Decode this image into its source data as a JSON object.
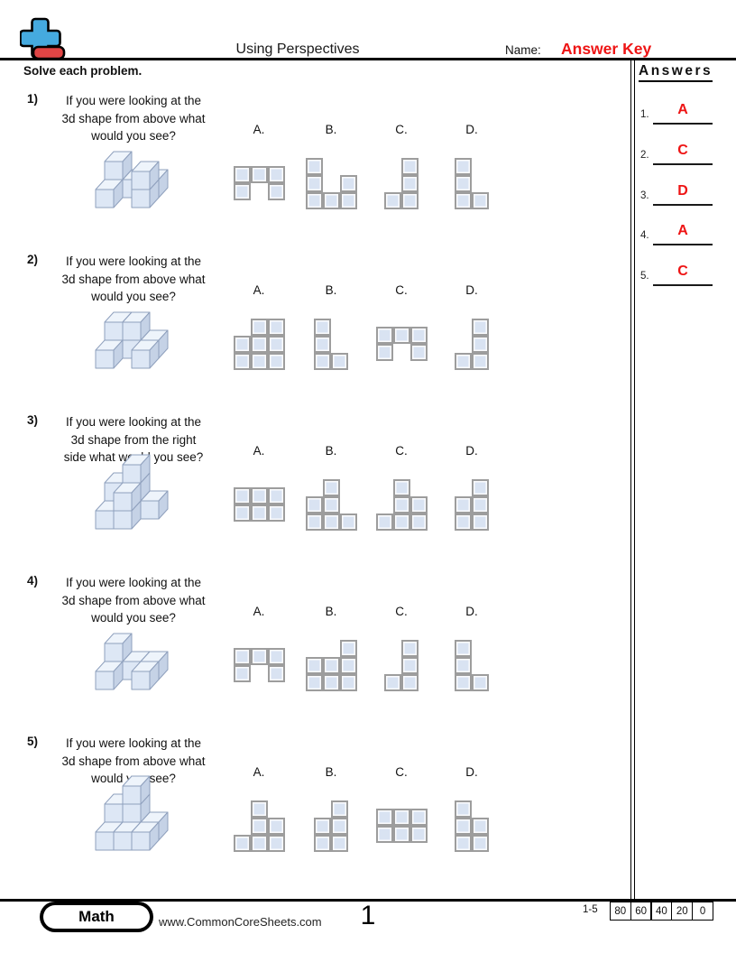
{
  "header": {
    "title": "Using Perspectives",
    "name_label": "Name:",
    "name_value": "Answer Key"
  },
  "instructions": "Solve each problem.",
  "answers_panel": {
    "title": "Answers",
    "items": [
      {
        "num": "1.",
        "value": "A"
      },
      {
        "num": "2.",
        "value": "C"
      },
      {
        "num": "3.",
        "value": "D"
      },
      {
        "num": "4.",
        "value": "A"
      },
      {
        "num": "5.",
        "value": "C"
      }
    ]
  },
  "problems": [
    {
      "number": "1)",
      "question_lines": [
        "If you were looking at the",
        "3d shape from above what",
        "would you see?"
      ],
      "cubes": [
        [
          0,
          0,
          0
        ],
        [
          0,
          1,
          0
        ],
        [
          0,
          1,
          1
        ],
        [
          1,
          1,
          0
        ],
        [
          2,
          1,
          0
        ],
        [
          2,
          0,
          0
        ],
        [
          2,
          0,
          1
        ]
      ],
      "options": [
        {
          "label": "A.",
          "rows": 2,
          "cols": 3,
          "cells": [
            [
              0,
              0
            ],
            [
              0,
              1
            ],
            [
              0,
              2
            ],
            [
              1,
              0
            ],
            [
              1,
              2
            ]
          ]
        },
        {
          "label": "B.",
          "rows": 3,
          "cols": 3,
          "cells": [
            [
              0,
              0
            ],
            [
              1,
              0
            ],
            [
              1,
              2
            ],
            [
              2,
              0
            ],
            [
              2,
              1
            ],
            [
              2,
              2
            ]
          ]
        },
        {
          "label": "C.",
          "rows": 3,
          "cols": 2,
          "cells": [
            [
              0,
              1
            ],
            [
              1,
              1
            ],
            [
              2,
              0
            ],
            [
              2,
              1
            ]
          ]
        },
        {
          "label": "D.",
          "rows": 3,
          "cols": 2,
          "cells": [
            [
              0,
              0
            ],
            [
              1,
              0
            ],
            [
              2,
              0
            ],
            [
              2,
              1
            ]
          ]
        }
      ]
    },
    {
      "number": "2)",
      "question_lines": [
        "If you were looking at the",
        "3d shape from above what",
        "would you see?"
      ],
      "cubes": [
        [
          0,
          0,
          0
        ],
        [
          0,
          1,
          0
        ],
        [
          0,
          1,
          1
        ],
        [
          1,
          1,
          0
        ],
        [
          1,
          1,
          1
        ],
        [
          2,
          1,
          0
        ],
        [
          2,
          0,
          0
        ]
      ],
      "options": [
        {
          "label": "A.",
          "rows": 3,
          "cols": 3,
          "cells": [
            [
              0,
              1
            ],
            [
              0,
              2
            ],
            [
              1,
              0
            ],
            [
              1,
              1
            ],
            [
              1,
              2
            ],
            [
              2,
              0
            ],
            [
              2,
              1
            ],
            [
              2,
              2
            ]
          ]
        },
        {
          "label": "B.",
          "rows": 3,
          "cols": 2,
          "cells": [
            [
              0,
              0
            ],
            [
              1,
              0
            ],
            [
              2,
              0
            ],
            [
              2,
              1
            ]
          ]
        },
        {
          "label": "C.",
          "rows": 2,
          "cols": 3,
          "cells": [
            [
              0,
              0
            ],
            [
              0,
              1
            ],
            [
              0,
              2
            ],
            [
              1,
              0
            ],
            [
              1,
              2
            ]
          ]
        },
        {
          "label": "D.",
          "rows": 3,
          "cols": 2,
          "cells": [
            [
              0,
              1
            ],
            [
              1,
              1
            ],
            [
              2,
              0
            ],
            [
              2,
              1
            ]
          ]
        }
      ]
    },
    {
      "number": "3)",
      "question_lines": [
        "If you were looking at the",
        "3d shape from the right",
        "side what would you see?"
      ],
      "cubes": [
        [
          0,
          0,
          0
        ],
        [
          1,
          0,
          0
        ],
        [
          1,
          0,
          1
        ],
        [
          0,
          1,
          0
        ],
        [
          0,
          1,
          1
        ],
        [
          1,
          1,
          0
        ],
        [
          1,
          1,
          1
        ],
        [
          1,
          1,
          2
        ],
        [
          2,
          1,
          0
        ]
      ],
      "options": [
        {
          "label": "A.",
          "rows": 2,
          "cols": 3,
          "cells": [
            [
              0,
              0
            ],
            [
              0,
              1
            ],
            [
              0,
              2
            ],
            [
              1,
              0
            ],
            [
              1,
              1
            ],
            [
              1,
              2
            ]
          ]
        },
        {
          "label": "B.",
          "rows": 3,
          "cols": 3,
          "cells": [
            [
              0,
              1
            ],
            [
              1,
              0
            ],
            [
              1,
              1
            ],
            [
              2,
              0
            ],
            [
              2,
              1
            ],
            [
              2,
              2
            ]
          ]
        },
        {
          "label": "C.",
          "rows": 3,
          "cols": 3,
          "cells": [
            [
              0,
              1
            ],
            [
              1,
              1
            ],
            [
              1,
              2
            ],
            [
              2,
              0
            ],
            [
              2,
              1
            ],
            [
              2,
              2
            ]
          ]
        },
        {
          "label": "D.",
          "rows": 3,
          "cols": 2,
          "cells": [
            [
              0,
              1
            ],
            [
              1,
              0
            ],
            [
              1,
              1
            ],
            [
              2,
              0
            ],
            [
              2,
              1
            ]
          ]
        }
      ]
    },
    {
      "number": "4)",
      "question_lines": [
        "If you were looking at the",
        "3d shape from above what",
        "would you see?"
      ],
      "cubes": [
        [
          0,
          0,
          0
        ],
        [
          0,
          1,
          0
        ],
        [
          0,
          1,
          1
        ],
        [
          1,
          1,
          0
        ],
        [
          2,
          1,
          0
        ],
        [
          2,
          0,
          0
        ]
      ],
      "options": [
        {
          "label": "A.",
          "rows": 2,
          "cols": 3,
          "cells": [
            [
              0,
              0
            ],
            [
              0,
              1
            ],
            [
              0,
              2
            ],
            [
              1,
              0
            ],
            [
              1,
              2
            ]
          ]
        },
        {
          "label": "B.",
          "rows": 3,
          "cols": 3,
          "cells": [
            [
              0,
              2
            ],
            [
              1,
              0
            ],
            [
              1,
              1
            ],
            [
              1,
              2
            ],
            [
              2,
              0
            ],
            [
              2,
              1
            ],
            [
              2,
              2
            ]
          ]
        },
        {
          "label": "C.",
          "rows": 3,
          "cols": 2,
          "cells": [
            [
              0,
              1
            ],
            [
              1,
              1
            ],
            [
              2,
              0
            ],
            [
              2,
              1
            ]
          ]
        },
        {
          "label": "D.",
          "rows": 3,
          "cols": 2,
          "cells": [
            [
              0,
              0
            ],
            [
              1,
              0
            ],
            [
              2,
              0
            ],
            [
              2,
              1
            ]
          ]
        }
      ]
    },
    {
      "number": "5)",
      "question_lines": [
        "If you were looking at the",
        "3d shape from above what",
        "would you see?"
      ],
      "cubes": [
        [
          0,
          0,
          0
        ],
        [
          1,
          0,
          0
        ],
        [
          2,
          0,
          0
        ],
        [
          0,
          1,
          0
        ],
        [
          0,
          1,
          1
        ],
        [
          1,
          1,
          0
        ],
        [
          1,
          1,
          1
        ],
        [
          1,
          1,
          2
        ],
        [
          2,
          1,
          0
        ]
      ],
      "options": [
        {
          "label": "A.",
          "rows": 3,
          "cols": 3,
          "cells": [
            [
              0,
              1
            ],
            [
              1,
              1
            ],
            [
              1,
              2
            ],
            [
              2,
              0
            ],
            [
              2,
              1
            ],
            [
              2,
              2
            ]
          ]
        },
        {
          "label": "B.",
          "rows": 3,
          "cols": 2,
          "cells": [
            [
              0,
              1
            ],
            [
              1,
              0
            ],
            [
              1,
              1
            ],
            [
              2,
              0
            ],
            [
              2,
              1
            ]
          ]
        },
        {
          "label": "C.",
          "rows": 2,
          "cols": 3,
          "cells": [
            [
              0,
              0
            ],
            [
              0,
              1
            ],
            [
              0,
              2
            ],
            [
              1,
              0
            ],
            [
              1,
              1
            ],
            [
              1,
              2
            ]
          ]
        },
        {
          "label": "D.",
          "rows": 3,
          "cols": 2,
          "cells": [
            [
              0,
              0
            ],
            [
              1,
              0
            ],
            [
              1,
              1
            ],
            [
              2,
              0
            ],
            [
              2,
              1
            ]
          ]
        }
      ]
    }
  ],
  "footer": {
    "subject": "Math",
    "website": "www.CommonCoreSheets.com",
    "page": "1",
    "range": "1-5",
    "scores": [
      "80",
      "60",
      "40",
      "20",
      "0"
    ]
  },
  "colors": {
    "accent_red": "#ee1414",
    "logo_blue": "#45aadf",
    "logo_red": "#e04545",
    "cube_top": "#eef4fb",
    "cube_front": "#dde7f5",
    "cube_right": "#c5d2e6",
    "cube_stroke": "#8fa0bd",
    "cell_fill": "#d9e3f2",
    "cell_border": "#9d9d9d"
  }
}
